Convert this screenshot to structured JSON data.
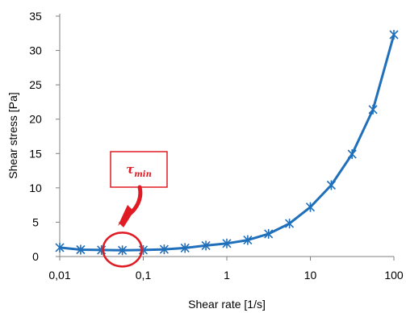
{
  "chart_data": {
    "type": "line",
    "xlabel": "Shear rate [1/s]",
    "ylabel": "Shear stress [Pa]",
    "x_scale": "log",
    "xlim": [
      0.01,
      100
    ],
    "ylim": [
      0,
      35
    ],
    "x_ticks": [
      0.01,
      0.1,
      1,
      10,
      100
    ],
    "x_tick_labels": [
      "0,01",
      "0,1",
      "1",
      "10",
      "100"
    ],
    "y_ticks": [
      0,
      5,
      10,
      15,
      20,
      25,
      30,
      35
    ],
    "y_tick_labels": [
      "0",
      "5",
      "10",
      "15",
      "20",
      "25",
      "30",
      "35"
    ],
    "grid": false,
    "series": [
      {
        "color": "#1f6fba",
        "marker": "star",
        "x": [
          0.01,
          0.0178,
          0.0316,
          0.0562,
          0.1,
          0.178,
          0.316,
          0.562,
          1,
          1.78,
          3.16,
          5.62,
          10,
          17.8,
          31.6,
          56.2,
          100
        ],
        "y": [
          1.3,
          1.0,
          0.95,
          0.9,
          0.95,
          1.05,
          1.25,
          1.6,
          1.9,
          2.4,
          3.3,
          4.8,
          7.2,
          10.4,
          14.9,
          21.4,
          32.3
        ]
      }
    ],
    "annotation": {
      "label_main": "τ",
      "label_sub": "min",
      "target_x": 0.0562,
      "target_y": 0.9,
      "color": "#e01b24"
    }
  }
}
